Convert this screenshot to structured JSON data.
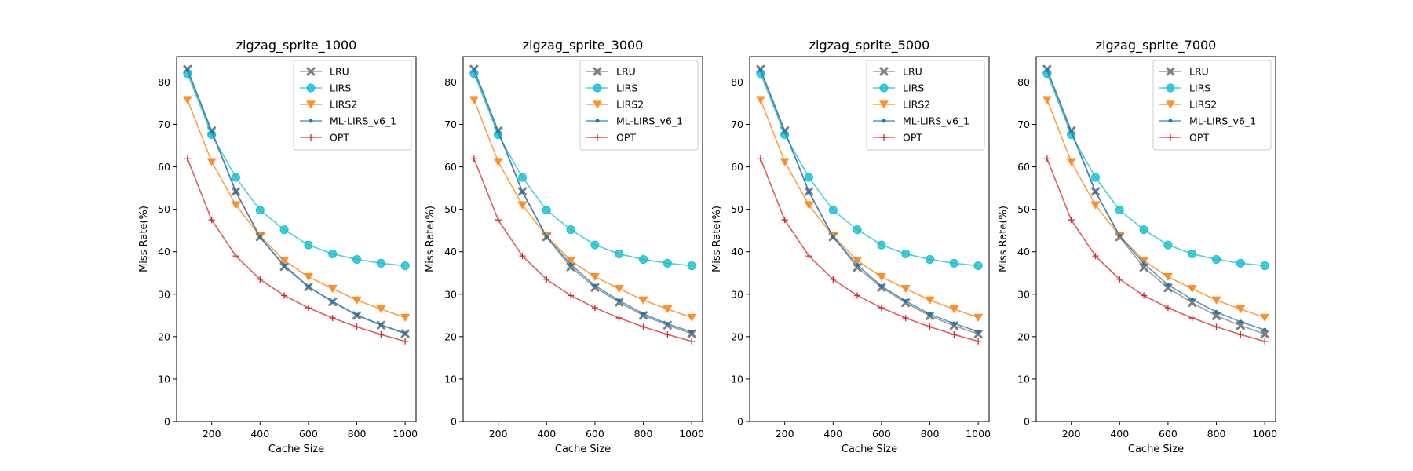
{
  "chart_data": [
    {
      "type": "line",
      "title": "zigzag_sprite_1000",
      "xlabel": "Cache Size",
      "ylabel": "Miss Rate(%)",
      "xlim": [
        55,
        1045
      ],
      "ylim": [
        0,
        86
      ],
      "xticks": [
        200,
        400,
        600,
        800,
        1000
      ],
      "yticks": [
        0,
        10,
        20,
        30,
        40,
        50,
        60,
        70,
        80
      ],
      "legend_position": "top-right",
      "grid": false,
      "x": [
        100,
        200,
        300,
        400,
        500,
        600,
        700,
        800,
        900,
        1000
      ],
      "series": [
        {
          "name": "LRU",
          "color": "#7f7f7f",
          "marker": "x",
          "values": [
            83.0,
            68.5,
            54.2,
            43.5,
            36.5,
            31.7,
            28.2,
            25.0,
            22.7,
            20.7
          ]
        },
        {
          "name": "LIRS",
          "color": "#17becf",
          "marker": "circle",
          "values": [
            82.0,
            67.6,
            57.5,
            49.8,
            45.2,
            41.6,
            39.5,
            38.2,
            37.3,
            36.7
          ]
        },
        {
          "name": "LIRS2",
          "color": "#ff7f0e",
          "marker": "triangle-down",
          "values": [
            75.8,
            61.2,
            51.0,
            43.7,
            37.9,
            34.1,
            31.3,
            28.6,
            26.5,
            24.5
          ]
        },
        {
          "name": "ML-LIRS_v6_1",
          "color": "#1f77b4",
          "marker": "dot",
          "values": [
            82.8,
            68.3,
            54.1,
            43.4,
            36.8,
            31.8,
            28.3,
            25.1,
            22.8,
            20.8
          ]
        },
        {
          "name": "OPT",
          "color": "#d62728",
          "marker": "plus",
          "values": [
            61.9,
            47.5,
            39.0,
            33.5,
            29.7,
            26.8,
            24.4,
            22.3,
            20.5,
            18.9
          ]
        }
      ]
    },
    {
      "type": "line",
      "title": "zigzag_sprite_3000",
      "xlabel": "Cache Size",
      "ylabel": "Miss Rate(%)",
      "xlim": [
        55,
        1045
      ],
      "ylim": [
        0,
        86
      ],
      "xticks": [
        200,
        400,
        600,
        800,
        1000
      ],
      "yticks": [
        0,
        10,
        20,
        30,
        40,
        50,
        60,
        70,
        80
      ],
      "legend_position": "top-right",
      "grid": false,
      "x": [
        100,
        200,
        300,
        400,
        500,
        600,
        700,
        800,
        900,
        1000
      ],
      "series": [
        {
          "name": "LRU",
          "color": "#7f7f7f",
          "marker": "x",
          "values": [
            83.0,
            68.5,
            54.2,
            43.5,
            36.4,
            31.6,
            28.1,
            25.0,
            22.7,
            20.7
          ]
        },
        {
          "name": "LIRS",
          "color": "#17becf",
          "marker": "circle",
          "values": [
            82.0,
            67.6,
            57.5,
            49.8,
            45.2,
            41.6,
            39.5,
            38.2,
            37.3,
            36.7
          ]
        },
        {
          "name": "LIRS2",
          "color": "#ff7f0e",
          "marker": "triangle-down",
          "values": [
            75.8,
            61.2,
            51.0,
            43.7,
            37.9,
            34.1,
            31.3,
            28.6,
            26.5,
            24.5
          ]
        },
        {
          "name": "ML-LIRS_v6_1",
          "color": "#1f77b4",
          "marker": "dot",
          "values": [
            82.8,
            68.3,
            54.1,
            43.5,
            37.0,
            32.0,
            28.5,
            25.4,
            23.0,
            21.1
          ]
        },
        {
          "name": "OPT",
          "color": "#d62728",
          "marker": "plus",
          "values": [
            61.9,
            47.5,
            39.0,
            33.5,
            29.7,
            26.8,
            24.4,
            22.3,
            20.5,
            18.9
          ]
        }
      ]
    },
    {
      "type": "line",
      "title": "zigzag_sprite_5000",
      "xlabel": "Cache Size",
      "ylabel": "Miss Rate(%)",
      "xlim": [
        55,
        1045
      ],
      "ylim": [
        0,
        86
      ],
      "xticks": [
        200,
        400,
        600,
        800,
        1000
      ],
      "yticks": [
        0,
        10,
        20,
        30,
        40,
        50,
        60,
        70,
        80
      ],
      "legend_position": "top-right",
      "grid": false,
      "x": [
        100,
        200,
        300,
        400,
        500,
        600,
        700,
        800,
        900,
        1000
      ],
      "series": [
        {
          "name": "LRU",
          "color": "#7f7f7f",
          "marker": "x",
          "values": [
            83.0,
            68.5,
            54.2,
            43.5,
            36.3,
            31.6,
            28.0,
            24.9,
            22.6,
            20.6
          ]
        },
        {
          "name": "LIRS",
          "color": "#17becf",
          "marker": "circle",
          "values": [
            82.0,
            67.6,
            57.5,
            49.8,
            45.2,
            41.6,
            39.5,
            38.2,
            37.3,
            36.7
          ]
        },
        {
          "name": "LIRS2",
          "color": "#ff7f0e",
          "marker": "triangle-down",
          "values": [
            75.8,
            61.2,
            51.0,
            43.7,
            37.9,
            34.1,
            31.3,
            28.6,
            26.5,
            24.5
          ]
        },
        {
          "name": "ML-LIRS_v6_1",
          "color": "#1f77b4",
          "marker": "dot",
          "values": [
            82.8,
            68.3,
            54.1,
            43.5,
            36.9,
            31.9,
            28.4,
            25.3,
            23.1,
            21.2
          ]
        },
        {
          "name": "OPT",
          "color": "#d62728",
          "marker": "plus",
          "values": [
            61.9,
            47.5,
            39.0,
            33.5,
            29.7,
            26.8,
            24.4,
            22.3,
            20.5,
            18.9
          ]
        }
      ]
    },
    {
      "type": "line",
      "title": "zigzag_sprite_7000",
      "xlabel": "Cache Size",
      "ylabel": "Miss Rate(%)",
      "xlim": [
        55,
        1045
      ],
      "ylim": [
        0,
        86
      ],
      "xticks": [
        200,
        400,
        600,
        800,
        1000
      ],
      "yticks": [
        0,
        10,
        20,
        30,
        40,
        50,
        60,
        70,
        80
      ],
      "legend_position": "top-right",
      "grid": false,
      "x": [
        100,
        200,
        300,
        400,
        500,
        600,
        700,
        800,
        900,
        1000
      ],
      "series": [
        {
          "name": "LRU",
          "color": "#7f7f7f",
          "marker": "x",
          "values": [
            83.0,
            68.5,
            54.2,
            43.5,
            36.3,
            31.5,
            28.0,
            24.9,
            22.6,
            20.6
          ]
        },
        {
          "name": "LIRS",
          "color": "#17becf",
          "marker": "circle",
          "values": [
            82.0,
            67.6,
            57.5,
            49.8,
            45.2,
            41.6,
            39.5,
            38.2,
            37.3,
            36.7
          ]
        },
        {
          "name": "LIRS2",
          "color": "#ff7f0e",
          "marker": "triangle-down",
          "values": [
            75.8,
            61.2,
            51.0,
            43.7,
            37.9,
            34.1,
            31.3,
            28.6,
            26.5,
            24.5
          ]
        },
        {
          "name": "ML-LIRS_v6_1",
          "color": "#1f77b4",
          "marker": "dot",
          "values": [
            82.8,
            68.3,
            54.1,
            43.8,
            37.2,
            32.2,
            28.8,
            25.8,
            23.5,
            21.6
          ]
        },
        {
          "name": "OPT",
          "color": "#d62728",
          "marker": "plus",
          "values": [
            61.9,
            47.5,
            39.0,
            33.5,
            29.7,
            26.8,
            24.4,
            22.3,
            20.5,
            18.9
          ]
        }
      ]
    }
  ]
}
